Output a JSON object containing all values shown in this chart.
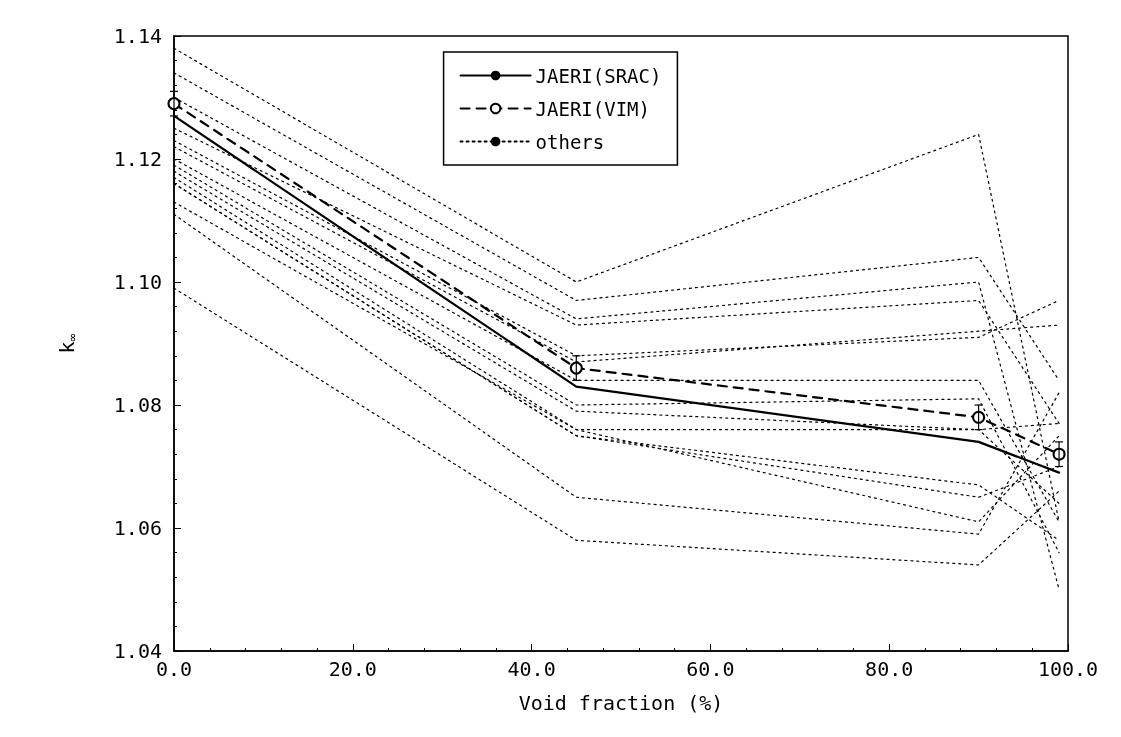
{
  "chart_data": {
    "type": "line",
    "xlabel": "Void fraction (%)",
    "ylabel": "k$_{∞}$",
    "x": [
      0,
      45,
      90,
      99
    ],
    "xlim": [
      0,
      100
    ],
    "xticks": [
      {
        "value": 0,
        "label": "0.0"
      },
      {
        "value": 20,
        "label": "20.0"
      },
      {
        "value": 40,
        "label": "40.0"
      },
      {
        "value": 60,
        "label": "60.0"
      },
      {
        "value": 80,
        "label": "80.0"
      },
      {
        "value": 100,
        "label": "100.0"
      }
    ],
    "ylim": [
      1.04,
      1.14
    ],
    "yticks": [
      {
        "value": 1.04,
        "label": "1.04"
      },
      {
        "value": 1.06,
        "label": "1.06"
      },
      {
        "value": 1.08,
        "label": "1.08"
      },
      {
        "value": 1.1,
        "label": "1.10"
      },
      {
        "value": 1.12,
        "label": "1.12"
      },
      {
        "value": 1.14,
        "label": "1.14"
      }
    ],
    "grid": false,
    "legend": "top",
    "marker": "none",
    "series": [
      {
        "name": "JAERI(SRAC)",
        "color": "#000000",
        "line_style": "solid",
        "values": [
          1.127,
          1.083,
          1.074,
          1.069
        ]
      },
      {
        "name": "JAERI(VIM)",
        "color": "#000000",
        "line_style": "dashed",
        "marker": "circle",
        "values": [
          1.129,
          1.086,
          1.078,
          1.072
        ],
        "errors": [
          0.002,
          0.002,
          0.002,
          0.002
        ]
      },
      {
        "name": "others",
        "color": "#000000",
        "line_style": "dotted",
        "values": [
          1.138,
          1.1,
          1.124,
          1.061
        ]
      },
      {
        "color": "#000000",
        "line_style": "dotted",
        "values": [
          1.134,
          1.097,
          1.104,
          1.084
        ]
      },
      {
        "color": "#000000",
        "line_style": "dotted",
        "values": [
          1.13,
          1.094,
          1.1,
          1.05
        ]
      },
      {
        "color": "#000000",
        "line_style": "dotted",
        "values": [
          1.125,
          1.093,
          1.097,
          1.077
        ]
      },
      {
        "color": "#000000",
        "line_style": "dotted",
        "values": [
          1.123,
          1.088,
          1.091,
          1.097
        ]
      },
      {
        "color": "#000000",
        "line_style": "dotted",
        "values": [
          1.122,
          1.087,
          1.092,
          1.093
        ]
      },
      {
        "color": "#000000",
        "line_style": "dotted",
        "values": [
          1.12,
          1.084,
          1.084,
          1.061
        ]
      },
      {
        "color": "#000000",
        "line_style": "dotted",
        "values": [
          1.119,
          1.08,
          1.081,
          1.056
        ]
      },
      {
        "color": "#000000",
        "line_style": "dotted",
        "values": [
          1.118,
          1.079,
          1.076,
          1.077
        ]
      },
      {
        "color": "#000000",
        "line_style": "dotted",
        "values": [
          1.117,
          1.076,
          1.076,
          1.064
        ]
      },
      {
        "color": "#000000",
        "line_style": "dotted",
        "values": [
          1.116,
          1.075,
          1.067,
          1.058
        ]
      },
      {
        "color": "#000000",
        "line_style": "dotted",
        "values": [
          1.116,
          1.075,
          1.065,
          1.07
        ]
      },
      {
        "color": "#000000",
        "line_style": "dotted",
        "values": [
          1.113,
          1.076,
          1.061,
          1.075
        ]
      },
      {
        "color": "#000000",
        "line_style": "dotted",
        "values": [
          1.111,
          1.065,
          1.059,
          1.082
        ]
      },
      {
        "color": "#000000",
        "line_style": "dotted",
        "values": [
          1.099,
          1.058,
          1.054,
          1.066
        ]
      }
    ]
  }
}
